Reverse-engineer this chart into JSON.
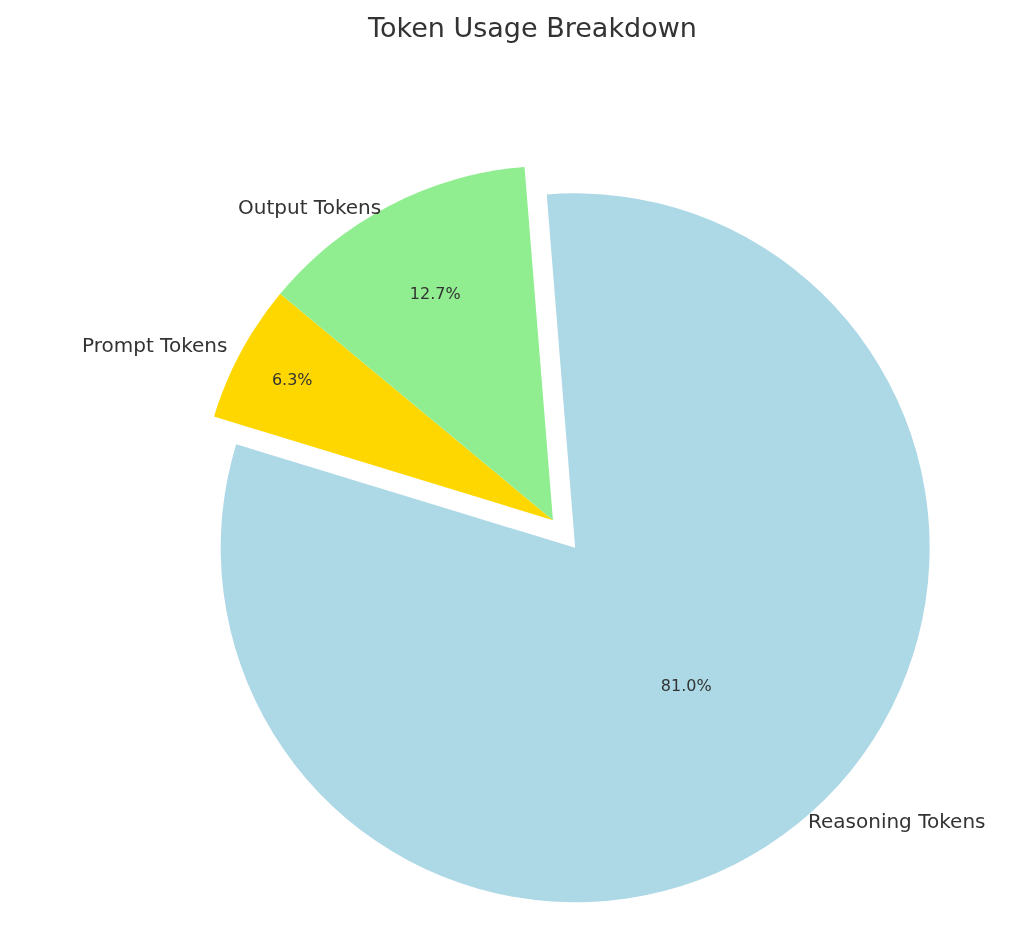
{
  "chart_data": {
    "type": "pie",
    "title": "Token Usage Breakdown",
    "categories": [
      "Prompt Tokens",
      "Output Tokens",
      "Reasoning Tokens"
    ],
    "values": [
      6.3,
      12.7,
      81.0
    ],
    "colors": [
      "#ffd700",
      "#90ee90",
      "#add8e6"
    ],
    "value_labels": [
      "6.3%",
      "12.7%",
      "81.0%"
    ]
  }
}
